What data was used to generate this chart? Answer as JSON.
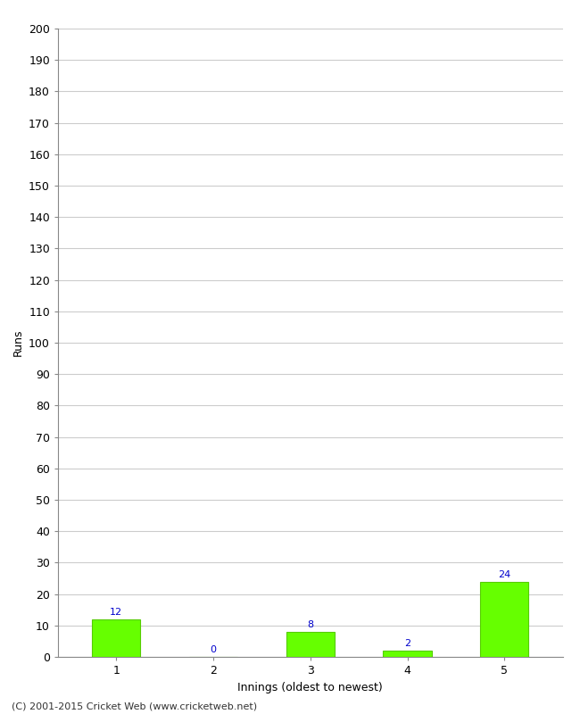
{
  "categories": [
    "1",
    "2",
    "3",
    "4",
    "5"
  ],
  "values": [
    12,
    0,
    8,
    2,
    24
  ],
  "bar_color": "#66ff00",
  "bar_edge_color": "#55cc00",
  "xlabel": "Innings (oldest to newest)",
  "ylabel": "Runs",
  "ylim": [
    0,
    200
  ],
  "yticks": [
    0,
    10,
    20,
    30,
    40,
    50,
    60,
    70,
    80,
    90,
    100,
    110,
    120,
    130,
    140,
    150,
    160,
    170,
    180,
    190,
    200
  ],
  "title": "",
  "label_color": "#0000cc",
  "label_fontsize": 8,
  "axis_fontsize": 9,
  "tick_fontsize": 9,
  "footer_text": "(C) 2001-2015 Cricket Web (www.cricketweb.net)",
  "footer_fontsize": 8,
  "background_color": "#ffffff",
  "grid_color": "#cccccc",
  "spine_color": "#888888"
}
